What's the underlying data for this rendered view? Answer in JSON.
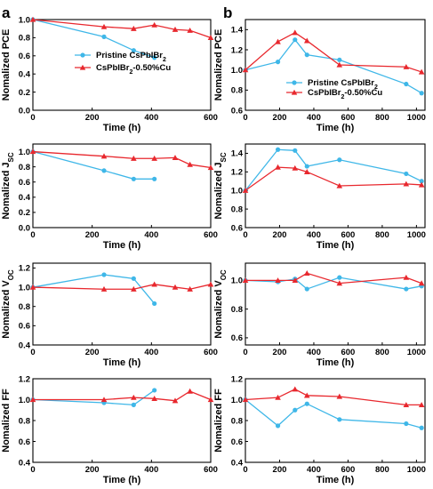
{
  "panels": [
    {
      "letter": "a"
    },
    {
      "letter": "b"
    }
  ],
  "legend": {
    "pristine_label": "Pristine CsPbIBr",
    "pristine_sub": "2",
    "cu_label": "CsPbIBr",
    "cu_sub": "2",
    "cu_suffix": "-0.50%Cu"
  },
  "colors": {
    "pristine": "#3fb7e8",
    "cu": "#e8282e"
  },
  "chart_data": [
    {
      "type": "line",
      "panel": "a",
      "row": 0,
      "ylabel": "Nomalized PCE",
      "xlabel": "Time (h)",
      "xlim": [
        0,
        600
      ],
      "ylim": [
        0.0,
        1.0
      ],
      "xticks": [
        0,
        200,
        400,
        600
      ],
      "yticks": [
        0.0,
        0.2,
        0.4,
        0.6,
        0.8,
        1.0
      ],
      "ytick_labels": [
        "0.0",
        "0.2",
        "0.4",
        "0.6",
        "0.8",
        "1.0"
      ],
      "legend_position": "lower-center",
      "series": [
        {
          "name": "Pristine CsPbIBr2",
          "x": [
            0,
            240,
            340,
            410
          ],
          "y": [
            1.0,
            0.81,
            0.66,
            0.58
          ]
        },
        {
          "name": "CsPbIBr2-0.50%Cu",
          "x": [
            0,
            240,
            340,
            410,
            480,
            530,
            600
          ],
          "y": [
            1.0,
            0.92,
            0.9,
            0.94,
            0.89,
            0.88,
            0.8
          ]
        }
      ]
    },
    {
      "type": "line",
      "panel": "b",
      "row": 0,
      "ylabel": "Nomalized PCE",
      "xlabel": "Time (h)",
      "xlim": [
        0,
        1050
      ],
      "ylim": [
        0.6,
        1.5
      ],
      "xticks": [
        0,
        200,
        400,
        600,
        800,
        1000
      ],
      "yticks": [
        0.6,
        0.8,
        1.0,
        1.2,
        1.4
      ],
      "ytick_labels": [
        "0.6",
        "0.8",
        "1.0",
        "1.2",
        "1.4"
      ],
      "legend_position": "lower-center",
      "series": [
        {
          "name": "Pristine CsPbIBr2",
          "x": [
            0,
            190,
            290,
            360,
            550,
            940,
            1030
          ],
          "y": [
            1.0,
            1.08,
            1.3,
            1.15,
            1.1,
            0.86,
            0.77
          ]
        },
        {
          "name": "CsPbIBr2-0.50%Cu",
          "x": [
            0,
            190,
            290,
            360,
            550,
            940,
            1030
          ],
          "y": [
            1.0,
            1.28,
            1.37,
            1.29,
            1.05,
            1.03,
            0.98
          ]
        }
      ]
    },
    {
      "type": "line",
      "panel": "a",
      "row": 1,
      "ylabel": "Nomalized J",
      "ylabel_sub": "SC",
      "xlabel": "Time (h)",
      "xlim": [
        0,
        600
      ],
      "ylim": [
        0.0,
        1.1
      ],
      "xticks": [
        0,
        200,
        400,
        600
      ],
      "yticks": [
        0.0,
        0.2,
        0.4,
        0.6,
        0.8,
        1.0
      ],
      "ytick_labels": [
        "0.0",
        "0.2",
        "0.4",
        "0.6",
        "0.8",
        "1.0"
      ],
      "series": [
        {
          "name": "Pristine CsPbIBr2",
          "x": [
            0,
            240,
            340,
            410
          ],
          "y": [
            1.0,
            0.75,
            0.64,
            0.64
          ]
        },
        {
          "name": "CsPbIBr2-0.50%Cu",
          "x": [
            0,
            240,
            340,
            410,
            480,
            530,
            600
          ],
          "y": [
            1.0,
            0.94,
            0.91,
            0.91,
            0.92,
            0.83,
            0.79
          ]
        }
      ]
    },
    {
      "type": "line",
      "panel": "b",
      "row": 1,
      "ylabel": "Nomalized J",
      "ylabel_sub": "SC",
      "xlabel": "Time (h)",
      "xlim": [
        0,
        1050
      ],
      "ylim": [
        0.6,
        1.5
      ],
      "xticks": [
        0,
        200,
        400,
        600,
        800,
        1000
      ],
      "yticks": [
        0.6,
        0.8,
        1.0,
        1.2,
        1.4
      ],
      "ytick_labels": [
        "0.6",
        "0.8",
        "1.0",
        "1.2",
        "1.4"
      ],
      "series": [
        {
          "name": "Pristine CsPbIBr2",
          "x": [
            0,
            190,
            290,
            360,
            550,
            940,
            1030
          ],
          "y": [
            1.0,
            1.44,
            1.43,
            1.26,
            1.33,
            1.18,
            1.1
          ]
        },
        {
          "name": "CsPbIBr2-0.50%Cu",
          "x": [
            0,
            190,
            290,
            360,
            550,
            940,
            1030
          ],
          "y": [
            1.0,
            1.25,
            1.24,
            1.2,
            1.05,
            1.07,
            1.06
          ]
        }
      ]
    },
    {
      "type": "line",
      "panel": "a",
      "row": 2,
      "ylabel": "Nomalized V",
      "ylabel_sub": "OC",
      "xlabel": "Time (h)",
      "xlim": [
        0,
        600
      ],
      "ylim": [
        0.4,
        1.25
      ],
      "xticks": [
        0,
        200,
        400,
        600
      ],
      "yticks": [
        0.4,
        0.6,
        0.8,
        1.0,
        1.2
      ],
      "ytick_labels": [
        "0.4",
        "0.6",
        "0.8",
        "1.0",
        "1.2"
      ],
      "series": [
        {
          "name": "Pristine CsPbIBr2",
          "x": [
            0,
            240,
            340,
            410
          ],
          "y": [
            1.0,
            1.13,
            1.09,
            0.83
          ]
        },
        {
          "name": "CsPbIBr2-0.50%Cu",
          "x": [
            0,
            240,
            340,
            410,
            480,
            530,
            600
          ],
          "y": [
            1.0,
            0.98,
            0.98,
            1.03,
            1.0,
            0.98,
            1.03
          ]
        }
      ]
    },
    {
      "type": "line",
      "panel": "b",
      "row": 2,
      "ylabel": "Nomalized V",
      "ylabel_sub": "OC",
      "xlabel": "Time (h)",
      "xlim": [
        0,
        1050
      ],
      "ylim": [
        0.55,
        1.12
      ],
      "xticks": [
        0,
        200,
        400,
        600,
        800,
        1000
      ],
      "yticks": [
        0.6,
        0.8,
        1.0
      ],
      "ytick_labels": [
        "0.6",
        "0.8",
        "1.0"
      ],
      "series": [
        {
          "name": "Pristine CsPbIBr2",
          "x": [
            0,
            190,
            290,
            360,
            550,
            940,
            1030
          ],
          "y": [
            1.0,
            0.99,
            1.01,
            0.94,
            1.02,
            0.94,
            0.96
          ]
        },
        {
          "name": "CsPbIBr2-0.50%Cu",
          "x": [
            0,
            190,
            290,
            360,
            550,
            940,
            1030
          ],
          "y": [
            1.0,
            1.0,
            1.0,
            1.05,
            0.98,
            1.02,
            0.98
          ]
        }
      ]
    },
    {
      "type": "line",
      "panel": "a",
      "row": 3,
      "ylabel": "Nomalized FF",
      "xlabel": "Time (h)",
      "xlim": [
        0,
        600
      ],
      "ylim": [
        0.4,
        1.2
      ],
      "xticks": [
        0,
        200,
        400,
        600
      ],
      "yticks": [
        0.4,
        0.6,
        0.8,
        1.0,
        1.2
      ],
      "ytick_labels": [
        "0.4",
        "0.6",
        "0.8",
        "1.0",
        "1.2"
      ],
      "series": [
        {
          "name": "Pristine CsPbIBr2",
          "x": [
            0,
            240,
            340,
            410
          ],
          "y": [
            1.0,
            0.97,
            0.95,
            1.09
          ]
        },
        {
          "name": "CsPbIBr2-0.50%Cu",
          "x": [
            0,
            240,
            340,
            410,
            480,
            530,
            600
          ],
          "y": [
            1.0,
            1.0,
            1.02,
            1.01,
            0.99,
            1.08,
            1.0
          ]
        }
      ]
    },
    {
      "type": "line",
      "panel": "b",
      "row": 3,
      "ylabel": "Nomalized FF",
      "xlabel": "Time (h)",
      "xlim": [
        0,
        1050
      ],
      "ylim": [
        0.4,
        1.2
      ],
      "xticks": [
        0,
        200,
        400,
        600,
        800,
        1000
      ],
      "yticks": [
        0.4,
        0.6,
        0.8,
        1.0,
        1.2
      ],
      "ytick_labels": [
        "0.4",
        "0.6",
        "0.8",
        "1.0",
        "1.2"
      ],
      "series": [
        {
          "name": "Pristine CsPbIBr2",
          "x": [
            0,
            190,
            290,
            360,
            550,
            940,
            1030
          ],
          "y": [
            1.0,
            0.75,
            0.9,
            0.96,
            0.81,
            0.77,
            0.73
          ]
        },
        {
          "name": "CsPbIBr2-0.50%Cu",
          "x": [
            0,
            190,
            290,
            360,
            550,
            940,
            1030
          ],
          "y": [
            1.0,
            1.02,
            1.1,
            1.04,
            1.03,
            0.95,
            0.95
          ]
        }
      ]
    }
  ]
}
